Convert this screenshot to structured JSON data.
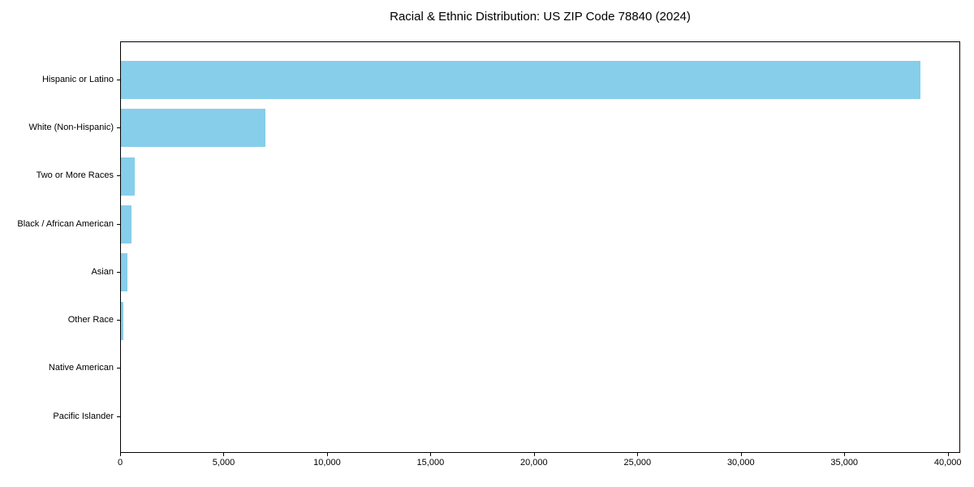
{
  "chart_data": {
    "type": "bar",
    "orientation": "horizontal",
    "title": "Racial & Ethnic Distribution: US ZIP Code 78840 (2024)",
    "categories": [
      "Hispanic or Latino",
      "White (Non-Hispanic)",
      "Two or More Races",
      "Black / African American",
      "Asian",
      "Other Race",
      "Native American",
      "Pacific Islander"
    ],
    "values": [
      38700,
      7000,
      670,
      520,
      310,
      110,
      30,
      10
    ],
    "bar_color": "#87CEEB",
    "axis_color": "#000000",
    "text_color": "#000000",
    "xlabel": "",
    "ylabel": "",
    "xlim": [
      0,
      40600
    ],
    "xticks": [
      0,
      5000,
      10000,
      15000,
      20000,
      25000,
      30000,
      35000,
      40000
    ],
    "xtick_labels": [
      "0",
      "5,000",
      "10,000",
      "15,000",
      "20,000",
      "25,000",
      "30,000",
      "35,000",
      "40,000"
    ],
    "grid": false,
    "legend": null,
    "background": "#ffffff"
  }
}
